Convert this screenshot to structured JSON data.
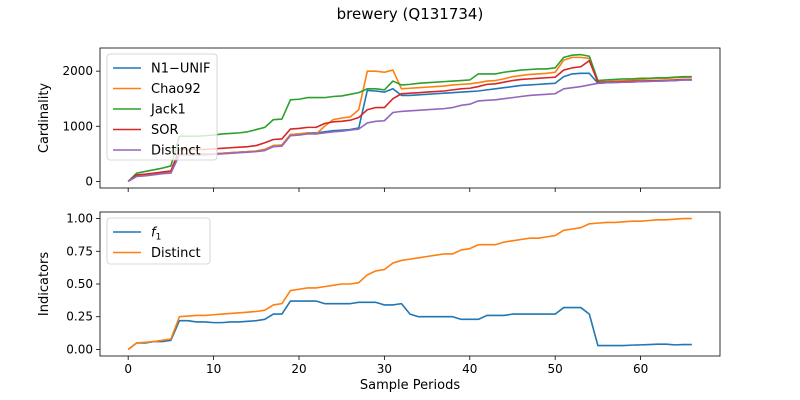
{
  "figure": {
    "title": "brewery (Q131734)"
  },
  "colors": {
    "blue": "#1f77b4",
    "orange": "#ff7f0e",
    "green": "#2ca02c",
    "red": "#d62728",
    "purple": "#9467bd"
  },
  "chart_data": [
    {
      "type": "line",
      "title": "brewery (Q131734)",
      "xlabel": "",
      "ylabel": "Cardinality",
      "xlim": [
        -3.3,
        69.3
      ],
      "ylim": [
        -120,
        2420
      ],
      "xticks": [
        0,
        10,
        20,
        30,
        40,
        50,
        60
      ],
      "xtick_labels_shown": false,
      "yticks": [
        0,
        1000,
        2000
      ],
      "ytick_labels": [
        "0",
        "1000",
        "2000"
      ],
      "legend_position": "upper left",
      "grid": false,
      "x": [
        0,
        1,
        2,
        3,
        4,
        5,
        6,
        7,
        8,
        9,
        10,
        11,
        12,
        13,
        14,
        15,
        16,
        17,
        18,
        19,
        20,
        21,
        22,
        23,
        24,
        25,
        26,
        27,
        28,
        29,
        30,
        31,
        32,
        33,
        34,
        35,
        36,
        37,
        38,
        39,
        40,
        41,
        42,
        43,
        44,
        45,
        46,
        47,
        48,
        49,
        50,
        51,
        52,
        53,
        54,
        55,
        56,
        57,
        58,
        59,
        60,
        61,
        62,
        63,
        64,
        65,
        66
      ],
      "series": [
        {
          "name": "N1−UNIF",
          "color": "#1f77b4",
          "values": [
            0,
            100,
            110,
            130,
            150,
            160,
            500,
            500,
            500,
            500,
            500,
            510,
            520,
            530,
            540,
            550,
            580,
            650,
            660,
            850,
            860,
            880,
            880,
            900,
            920,
            930,
            940,
            970,
            1650,
            1640,
            1620,
            1680,
            1560,
            1560,
            1570,
            1580,
            1590,
            1600,
            1610,
            1620,
            1630,
            1640,
            1660,
            1680,
            1700,
            1720,
            1740,
            1750,
            1760,
            1770,
            1780,
            1900,
            1950,
            1960,
            1960,
            1780,
            1790,
            1795,
            1800,
            1805,
            1810,
            1815,
            1820,
            1825,
            1830,
            1840,
            1840
          ]
        },
        {
          "name": "Chao92",
          "color": "#ff7f0e",
          "values": [
            0,
            100,
            110,
            130,
            150,
            160,
            500,
            500,
            500,
            500,
            500,
            510,
            520,
            530,
            540,
            550,
            580,
            650,
            660,
            850,
            860,
            880,
            860,
            1000,
            1120,
            1150,
            1170,
            1300,
            2000,
            2000,
            1980,
            2020,
            1680,
            1690,
            1700,
            1710,
            1720,
            1730,
            1750,
            1760,
            1770,
            1790,
            1820,
            1830,
            1860,
            1900,
            1920,
            1940,
            1950,
            1960,
            1980,
            2200,
            2250,
            2250,
            2230,
            1800,
            1810,
            1820,
            1830,
            1840,
            1850,
            1860,
            1870,
            1870,
            1880,
            1890,
            1890
          ]
        },
        {
          "name": "Jack1",
          "color": "#2ca02c",
          "values": [
            0,
            150,
            180,
            210,
            240,
            280,
            820,
            820,
            820,
            830,
            840,
            860,
            870,
            880,
            900,
            940,
            980,
            1120,
            1130,
            1480,
            1490,
            1520,
            1520,
            1520,
            1540,
            1550,
            1580,
            1610,
            1680,
            1680,
            1660,
            1820,
            1750,
            1760,
            1780,
            1790,
            1800,
            1810,
            1820,
            1830,
            1840,
            1950,
            1950,
            1950,
            1980,
            2000,
            2020,
            2030,
            2040,
            2040,
            2060,
            2250,
            2290,
            2300,
            2270,
            1830,
            1840,
            1850,
            1860,
            1860,
            1870,
            1870,
            1880,
            1880,
            1890,
            1900,
            1900
          ]
        },
        {
          "name": "SOR",
          "color": "#d62728",
          "values": [
            0,
            120,
            130,
            150,
            170,
            190,
            580,
            580,
            580,
            580,
            590,
            600,
            610,
            620,
            630,
            650,
            700,
            760,
            770,
            950,
            960,
            980,
            980,
            1050,
            1080,
            1090,
            1110,
            1160,
            1300,
            1340,
            1340,
            1500,
            1590,
            1600,
            1610,
            1620,
            1630,
            1640,
            1660,
            1680,
            1690,
            1720,
            1760,
            1770,
            1800,
            1830,
            1850,
            1860,
            1870,
            1880,
            1890,
            2020,
            2060,
            2080,
            2190,
            1800,
            1800,
            1805,
            1810,
            1815,
            1820,
            1825,
            1830,
            1835,
            1840,
            1850,
            1850
          ]
        },
        {
          "name": "Distinct",
          "color": "#9467bd",
          "values": [
            0,
            90,
            100,
            120,
            140,
            150,
            480,
            480,
            480,
            480,
            490,
            500,
            510,
            520,
            530,
            540,
            560,
            630,
            640,
            830,
            840,
            860,
            860,
            880,
            900,
            910,
            930,
            950,
            1060,
            1090,
            1100,
            1250,
            1270,
            1280,
            1290,
            1300,
            1310,
            1320,
            1340,
            1380,
            1400,
            1460,
            1470,
            1480,
            1500,
            1520,
            1540,
            1560,
            1570,
            1580,
            1590,
            1680,
            1700,
            1720,
            1750,
            1780,
            1790,
            1795,
            1800,
            1805,
            1810,
            1815,
            1820,
            1825,
            1830,
            1840,
            1840
          ]
        }
      ]
    },
    {
      "type": "line",
      "xlabel": "Sample Periods",
      "ylabel": "Indicators",
      "xlim": [
        -3.3,
        69.3
      ],
      "ylim": [
        -0.05,
        1.05
      ],
      "xticks": [
        0,
        10,
        20,
        30,
        40,
        50,
        60
      ],
      "xtick_labels": [
        "0",
        "10",
        "20",
        "30",
        "40",
        "50",
        "60"
      ],
      "yticks": [
        0,
        0.25,
        0.5,
        0.75,
        1.0
      ],
      "ytick_labels": [
        "0.00",
        "0.25",
        "0.50",
        "0.75",
        "1.00"
      ],
      "legend_position": "upper left",
      "grid": false,
      "x": [
        0,
        1,
        2,
        3,
        4,
        5,
        6,
        7,
        8,
        9,
        10,
        11,
        12,
        13,
        14,
        15,
        16,
        17,
        18,
        19,
        20,
        21,
        22,
        23,
        24,
        25,
        26,
        27,
        28,
        29,
        30,
        31,
        32,
        33,
        34,
        35,
        36,
        37,
        38,
        39,
        40,
        41,
        42,
        43,
        44,
        45,
        46,
        47,
        48,
        49,
        50,
        51,
        52,
        53,
        54,
        55,
        56,
        57,
        58,
        59,
        60,
        61,
        62,
        63,
        64,
        65,
        66
      ],
      "series": [
        {
          "name": "f1",
          "label_base": "f",
          "label_sub": "1",
          "color": "#1f77b4",
          "values": [
            0.0,
            0.05,
            0.05,
            0.06,
            0.06,
            0.07,
            0.22,
            0.22,
            0.21,
            0.21,
            0.205,
            0.205,
            0.21,
            0.21,
            0.215,
            0.22,
            0.23,
            0.27,
            0.27,
            0.37,
            0.37,
            0.37,
            0.37,
            0.35,
            0.35,
            0.35,
            0.35,
            0.36,
            0.36,
            0.36,
            0.34,
            0.34,
            0.35,
            0.27,
            0.25,
            0.25,
            0.25,
            0.25,
            0.25,
            0.23,
            0.23,
            0.23,
            0.26,
            0.26,
            0.26,
            0.27,
            0.27,
            0.27,
            0.27,
            0.27,
            0.27,
            0.32,
            0.32,
            0.32,
            0.27,
            0.03,
            0.03,
            0.03,
            0.03,
            0.033,
            0.035,
            0.037,
            0.04,
            0.04,
            0.035,
            0.037,
            0.037
          ]
        },
        {
          "name": "Distinct",
          "color": "#ff7f0e",
          "values": [
            0.0,
            0.05,
            0.055,
            0.06,
            0.07,
            0.08,
            0.25,
            0.255,
            0.26,
            0.26,
            0.265,
            0.27,
            0.275,
            0.28,
            0.285,
            0.29,
            0.3,
            0.34,
            0.35,
            0.45,
            0.46,
            0.47,
            0.47,
            0.48,
            0.49,
            0.5,
            0.5,
            0.51,
            0.57,
            0.6,
            0.61,
            0.66,
            0.68,
            0.69,
            0.7,
            0.71,
            0.72,
            0.73,
            0.73,
            0.76,
            0.77,
            0.8,
            0.8,
            0.8,
            0.82,
            0.83,
            0.84,
            0.85,
            0.85,
            0.86,
            0.87,
            0.91,
            0.92,
            0.93,
            0.96,
            0.965,
            0.97,
            0.97,
            0.975,
            0.98,
            0.98,
            0.985,
            0.99,
            0.99,
            0.995,
            1.0,
            1.0
          ]
        }
      ]
    }
  ]
}
